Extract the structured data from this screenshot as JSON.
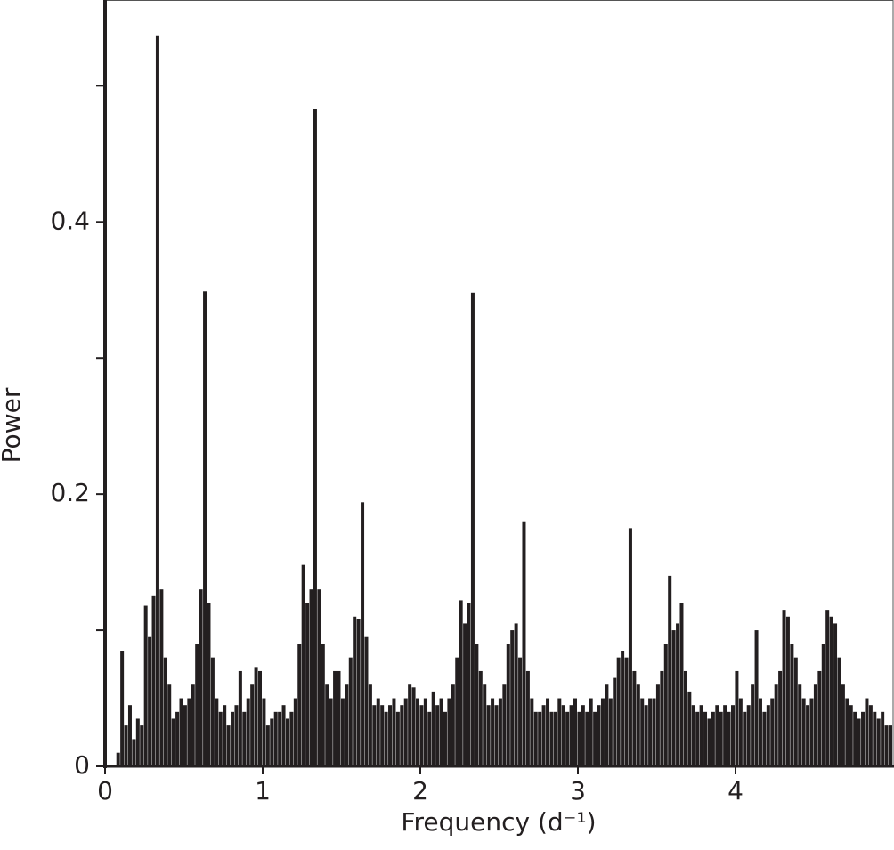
{
  "chart_data": {
    "type": "bar",
    "x_label": "Frequency (d⁻¹)",
    "y_label": "Power",
    "color": "#231f20",
    "x": [
      0.1,
      0.125,
      0.15,
      0.175,
      0.2,
      0.225,
      0.25,
      0.275,
      0.3,
      0.325,
      0.35,
      0.375,
      0.4,
      0.425,
      0.45,
      0.475,
      0.5,
      0.525,
      0.55,
      0.575,
      0.6,
      0.625,
      0.65,
      0.675,
      0.7,
      0.725,
      0.75,
      0.775,
      0.8,
      0.825,
      0.85,
      0.875,
      0.9,
      0.925,
      0.95,
      0.975,
      1,
      1.025,
      1.05,
      1.075,
      1.1,
      1.125,
      1.15,
      1.175,
      1.2,
      1.225,
      1.25,
      1.275,
      1.3,
      1.325,
      1.35,
      1.375,
      1.4,
      1.425,
      1.45,
      1.475,
      1.5,
      1.525,
      1.55,
      1.575,
      1.6,
      1.625,
      1.65,
      1.675,
      1.7,
      1.725,
      1.75,
      1.775,
      1.8,
      1.825,
      1.85,
      1.875,
      1.9,
      1.925,
      1.95,
      1.975,
      2,
      2.025,
      2.05,
      2.075,
      2.1,
      2.125,
      2.15,
      2.175,
      2.2,
      2.225,
      2.25,
      2.275,
      2.3,
      2.325,
      2.35,
      2.375,
      2.4,
      2.425,
      2.45,
      2.475,
      2.5,
      2.525,
      2.55,
      2.575,
      2.6,
      2.625,
      2.65,
      2.675,
      2.7,
      2.725,
      2.75,
      2.775,
      2.8,
      2.825,
      2.85,
      2.875,
      2.9,
      2.925,
      2.95,
      2.975,
      3,
      3.025,
      3.05,
      3.075,
      3.1,
      3.125,
      3.15,
      3.175,
      3.2,
      3.225,
      3.25,
      3.275,
      3.3,
      3.325,
      3.35,
      3.375,
      3.4,
      3.425,
      3.45,
      3.475,
      3.5,
      3.525,
      3.55,
      3.575,
      3.6,
      3.625,
      3.65,
      3.675,
      3.7,
      3.725,
      3.75,
      3.775,
      3.8,
      3.825,
      3.85,
      3.875,
      3.9,
      3.925,
      3.95,
      3.975,
      4,
      4.025,
      4.05,
      4.075,
      4.1,
      4.125,
      4.15,
      4.175,
      4.2,
      4.225,
      4.25,
      4.275,
      4.3,
      4.325,
      4.35,
      4.375,
      4.4,
      4.425,
      4.45,
      4.475,
      4.5,
      4.525,
      4.55,
      4.575,
      4.6,
      4.625,
      4.65,
      4.675,
      4.7,
      4.725,
      4.75,
      4.775,
      4.8,
      4.825,
      4.85,
      4.875,
      4.9,
      4.925,
      4.95,
      4.975,
      5
    ],
    "values": [
      0.01,
      0.085,
      0.03,
      0.045,
      0.02,
      0.035,
      0.03,
      0.118,
      0.095,
      0.125,
      0.537,
      0.13,
      0.08,
      0.06,
      0.035,
      0.04,
      0.05,
      0.045,
      0.05,
      0.06,
      0.09,
      0.13,
      0.349,
      0.12,
      0.08,
      0.05,
      0.04,
      0.045,
      0.03,
      0.04,
      0.045,
      0.07,
      0.04,
      0.05,
      0.06,
      0.073,
      0.07,
      0.05,
      0.03,
      0.035,
      0.04,
      0.04,
      0.045,
      0.035,
      0.04,
      0.05,
      0.09,
      0.148,
      0.12,
      0.13,
      0.483,
      0.13,
      0.09,
      0.06,
      0.05,
      0.07,
      0.07,
      0.05,
      0.06,
      0.08,
      0.11,
      0.108,
      0.194,
      0.095,
      0.06,
      0.045,
      0.05,
      0.045,
      0.04,
      0.045,
      0.05,
      0.04,
      0.045,
      0.05,
      0.06,
      0.058,
      0.05,
      0.045,
      0.05,
      0.04,
      0.055,
      0.045,
      0.05,
      0.04,
      0.05,
      0.06,
      0.08,
      0.122,
      0.105,
      0.12,
      0.348,
      0.09,
      0.07,
      0.06,
      0.045,
      0.05,
      0.045,
      0.05,
      0.06,
      0.09,
      0.1,
      0.105,
      0.08,
      0.18,
      0.07,
      0.05,
      0.04,
      0.04,
      0.045,
      0.05,
      0.04,
      0.04,
      0.05,
      0.045,
      0.04,
      0.045,
      0.05,
      0.04,
      0.045,
      0.04,
      0.05,
      0.04,
      0.045,
      0.05,
      0.06,
      0.05,
      0.065,
      0.08,
      0.085,
      0.08,
      0.175,
      0.07,
      0.06,
      0.05,
      0.045,
      0.05,
      0.05,
      0.06,
      0.07,
      0.09,
      0.14,
      0.1,
      0.105,
      0.12,
      0.07,
      0.055,
      0.045,
      0.04,
      0.045,
      0.04,
      0.035,
      0.04,
      0.045,
      0.04,
      0.045,
      0.04,
      0.045,
      0.07,
      0.05,
      0.04,
      0.045,
      0.06,
      0.1,
      0.05,
      0.04,
      0.045,
      0.05,
      0.06,
      0.07,
      0.115,
      0.11,
      0.09,
      0.08,
      0.06,
      0.05,
      0.045,
      0.05,
      0.06,
      0.07,
      0.09,
      0.115,
      0.11,
      0.105,
      0.08,
      0.06,
      0.05,
      0.045,
      0.04,
      0.035,
      0.04,
      0.05,
      0.045,
      0.04,
      0.035,
      0.04,
      0.03,
      0.03
    ],
    "xlim": [
      0,
      5
    ],
    "xticks": [
      0,
      1,
      2,
      3,
      4
    ],
    "ylim": [
      0,
      0.563
    ],
    "yticks": [
      0,
      0.2,
      0.4
    ],
    "minor_yticks": [
      0.1,
      0.3,
      0.5
    ]
  }
}
